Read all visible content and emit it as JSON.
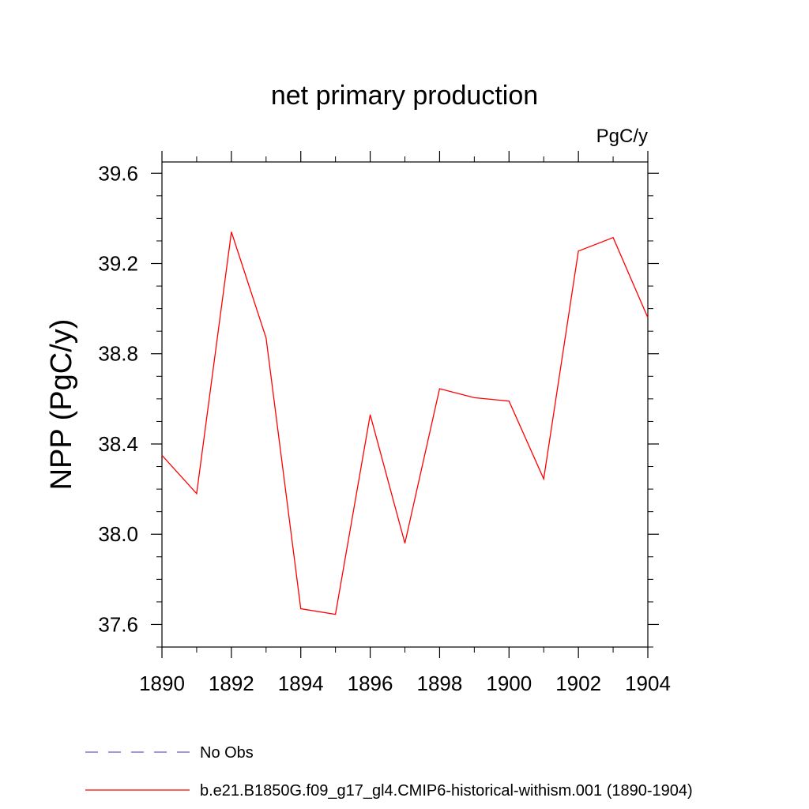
{
  "chart_data": {
    "type": "line",
    "title": "net primary production",
    "units_label": "PgC/y",
    "xlabel": "",
    "ylabel": "NPP  (PgC/y)",
    "xlim": [
      1890,
      1904
    ],
    "ylim": [
      37.5,
      39.65
    ],
    "x_ticks": [
      "1890",
      "1892",
      "1894",
      "1896",
      "1898",
      "1900",
      "1902",
      "1904"
    ],
    "y_ticks": [
      "37.6",
      "38.0",
      "38.4",
      "38.8",
      "39.2",
      "39.6"
    ],
    "grid": false,
    "legend_position": "bottom",
    "series": [
      {
        "name": "b.e21.B1850G.f09_g17_gl4.CMIP6-historical-withism.001 (1890-1904)",
        "color": "#ff0000",
        "style": "solid",
        "x": [
          1890,
          1891,
          1892,
          1893,
          1894,
          1895,
          1896,
          1897,
          1898,
          1899,
          1900,
          1901,
          1902,
          1903,
          1904
        ],
        "values": [
          38.35,
          38.18,
          39.34,
          38.87,
          37.67,
          37.645,
          38.53,
          37.96,
          38.645,
          38.605,
          38.59,
          38.245,
          39.255,
          39.315,
          38.96
        ]
      }
    ],
    "legend": [
      {
        "label": "No Obs",
        "color": "#6a5acd",
        "style": "dashed"
      },
      {
        "label": "b.e21.B1850G.f09_g17_gl4.CMIP6-historical-withism.001 (1890-1904)",
        "color": "#ff0000",
        "style": "solid"
      }
    ]
  }
}
